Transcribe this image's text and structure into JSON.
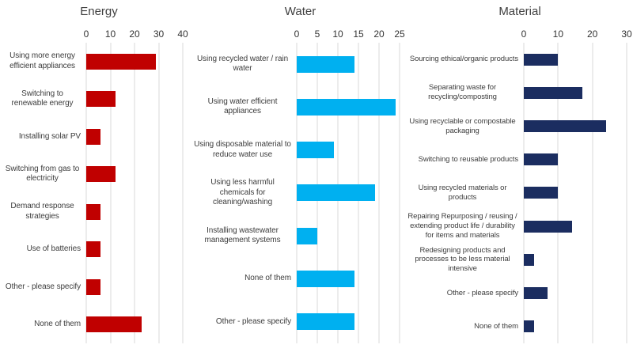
{
  "page": {
    "background": "#FFFFFF",
    "text_color": "#3F3F3F",
    "gridline_color": "#D9D9D9"
  },
  "chart_data": [
    {
      "type": "bar",
      "orientation": "horizontal",
      "title": "Energy",
      "color": "#C00000",
      "axis_position": "top",
      "gridlines": true,
      "xlim": [
        0,
        40
      ],
      "ticks": [
        0,
        10,
        20,
        30,
        40
      ],
      "categories": [
        "Using more energy efficient appliances",
        "Switching to renewable energy",
        "Installing solar PV",
        "Switching from gas to electricity",
        "Demand response strategies",
        "Use of batteries",
        "Other - please specify",
        "None of them"
      ],
      "values": [
        29,
        12,
        6,
        12,
        6,
        6,
        6,
        23
      ]
    },
    {
      "type": "bar",
      "orientation": "horizontal",
      "title": "Water",
      "color": "#00B0F0",
      "axis_position": "top",
      "gridlines": true,
      "xlim": [
        0,
        25
      ],
      "ticks": [
        0,
        5,
        10,
        15,
        20,
        25
      ],
      "categories": [
        "Using recycled water / rain water",
        "Using water efficient appliances",
        "Using disposable material to reduce water use",
        "Using less harmful chemicals for cleaning/washing",
        "Installing wastewater management systems",
        "None of them",
        "Other - please specify"
      ],
      "values": [
        14,
        24,
        9,
        19,
        5,
        14,
        14
      ]
    },
    {
      "type": "bar",
      "orientation": "horizontal",
      "title": "Material",
      "color": "#1B2D60",
      "axis_position": "top",
      "gridlines": true,
      "xlim": [
        0,
        30
      ],
      "ticks": [
        0,
        10,
        20,
        30
      ],
      "categories": [
        "Sourcing ethical/organic products",
        "Separating waste for recycling/composting",
        "Using recyclable or compostable packaging",
        "Switching to reusable products",
        "Using recycled materials or products",
        "Repairing Repurposing / reusing / extending product life / durability for items and materials",
        "Redesigning products and processes to be less material intensive",
        "Other - please specify",
        "None of them"
      ],
      "values": [
        10,
        17,
        24,
        10,
        10,
        14,
        3,
        7,
        3
      ]
    }
  ]
}
